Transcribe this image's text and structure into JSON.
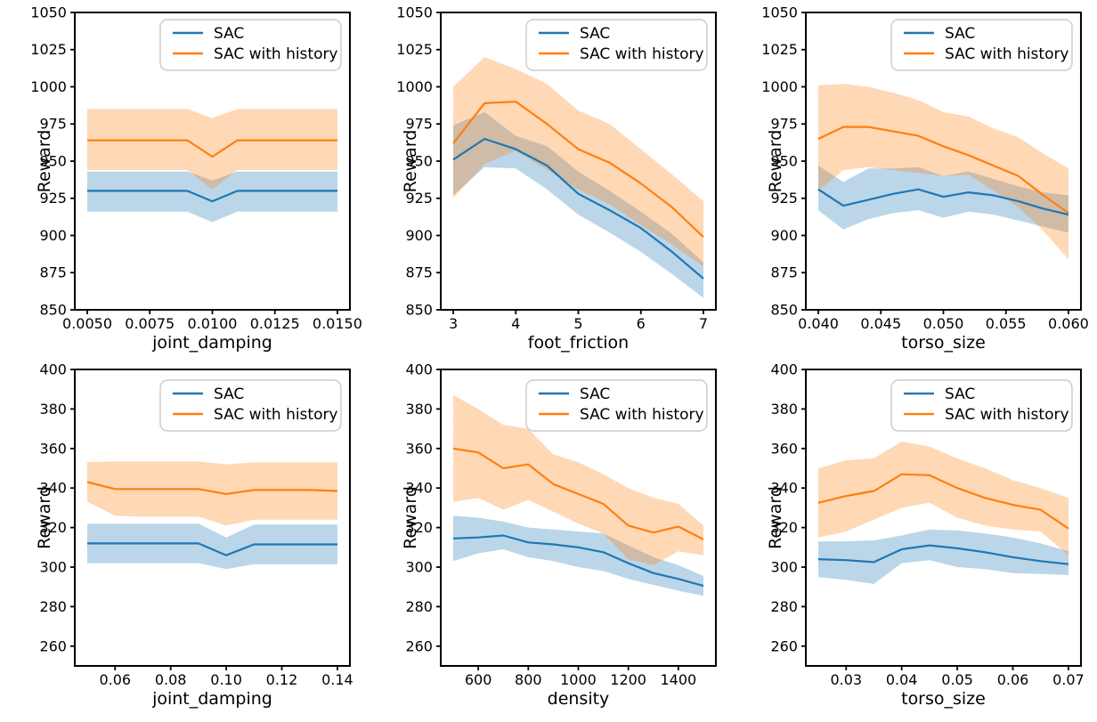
{
  "style": {
    "background": "#ffffff",
    "sac_color": "#1f77b4",
    "history_color": "#ff7f0e",
    "band_opacity": 0.3,
    "spine_color": "#000000",
    "legend_border_color": "#cccccc",
    "legend_fill": "#ffffff"
  },
  "legend": {
    "entries": [
      "SAC",
      "SAC with history"
    ],
    "position": "upper right"
  },
  "chart_data": [
    {
      "type": "line",
      "position": {
        "row": 0,
        "col": 0
      },
      "xlabel": "joint_damping",
      "ylabel": "Reward",
      "xlim": [
        0.0045,
        0.0155
      ],
      "ylim": [
        850,
        1050
      ],
      "grid": false,
      "xticks": {
        "values": [
          0.005,
          0.0075,
          0.01,
          0.0125,
          0.015
        ],
        "labels": [
          "0.0050",
          "0.0075",
          "0.0100",
          "0.0125",
          "0.0150"
        ]
      },
      "yticks": {
        "values": [
          850,
          875,
          900,
          925,
          950,
          975,
          1000,
          1025,
          1050
        ],
        "labels": [
          "850",
          "875",
          "900",
          "925",
          "950",
          "975",
          "1000",
          "1025",
          "1050"
        ]
      },
      "x": [
        0.005,
        0.006,
        0.007,
        0.008,
        0.009,
        0.01,
        0.011,
        0.012,
        0.013,
        0.014,
        0.015
      ],
      "series": [
        {
          "key": "sac",
          "name": "SAC",
          "color": "#1f77b4",
          "values": [
            930,
            930,
            930,
            930,
            930,
            923,
            930,
            930,
            930,
            930,
            930
          ],
          "band_lower": [
            916,
            916,
            916,
            916,
            916,
            909,
            916,
            916,
            916,
            916,
            916
          ],
          "band_upper": [
            943,
            943,
            943,
            943,
            943,
            937,
            943,
            943,
            943,
            943,
            943
          ]
        },
        {
          "key": "sac_with_history",
          "name": "SAC with history",
          "color": "#ff7f0e",
          "values": [
            964,
            964,
            964,
            964,
            964,
            953,
            964,
            964,
            964,
            964,
            964
          ],
          "band_lower": [
            944,
            944,
            944,
            944,
            944,
            931,
            944,
            944,
            944,
            944,
            944
          ],
          "band_upper": [
            985,
            985,
            985,
            985,
            985,
            979,
            985,
            985,
            985,
            985,
            985
          ]
        }
      ]
    },
    {
      "type": "line",
      "position": {
        "row": 0,
        "col": 1
      },
      "xlabel": "foot_friction",
      "ylabel": "Reward",
      "xlim": [
        2.8,
        7.2
      ],
      "ylim": [
        850,
        1050
      ],
      "grid": false,
      "xticks": {
        "values": [
          3,
          4,
          5,
          6,
          7
        ],
        "labels": [
          "3",
          "4",
          "5",
          "6",
          "7"
        ]
      },
      "yticks": {
        "values": [
          850,
          875,
          900,
          925,
          950,
          975,
          1000,
          1025,
          1050
        ],
        "labels": [
          "850",
          "875",
          "900",
          "925",
          "950",
          "975",
          "1000",
          "1025",
          "1050"
        ]
      },
      "x": [
        3,
        3.5,
        4,
        4.5,
        5,
        5.5,
        6,
        6.5,
        7
      ],
      "series": [
        {
          "key": "sac",
          "name": "SAC",
          "color": "#1f77b4",
          "values": [
            951,
            965,
            958,
            947,
            928,
            917,
            905,
            889,
            871
          ],
          "band_lower": [
            927,
            946,
            945,
            931,
            914,
            902,
            889,
            874,
            858
          ],
          "band_upper": [
            974,
            983,
            967,
            960,
            943,
            930,
            916,
            901,
            882
          ]
        },
        {
          "key": "sac_with_history",
          "name": "SAC with history",
          "color": "#ff7f0e",
          "values": [
            962,
            989,
            990,
            975,
            958,
            949,
            935,
            919,
            899
          ],
          "band_lower": [
            925,
            948,
            957,
            944,
            931,
            921,
            907,
            894,
            879
          ],
          "band_upper": [
            1000,
            1020,
            1012,
            1002,
            984,
            975,
            958,
            941,
            923
          ]
        }
      ]
    },
    {
      "type": "line",
      "position": {
        "row": 0,
        "col": 2
      },
      "xlabel": "torso_size",
      "ylabel": "Reward",
      "xlim": [
        0.039,
        0.061
      ],
      "ylim": [
        850,
        1050
      ],
      "grid": false,
      "xticks": {
        "values": [
          0.04,
          0.045,
          0.05,
          0.055,
          0.06
        ],
        "labels": [
          "0.040",
          "0.045",
          "0.050",
          "0.055",
          "0.060"
        ]
      },
      "yticks": {
        "values": [
          850,
          875,
          900,
          925,
          950,
          975,
          1000,
          1025,
          1050
        ],
        "labels": [
          "850",
          "875",
          "900",
          "925",
          "950",
          "975",
          "1000",
          "1025",
          "1050"
        ]
      },
      "x": [
        0.04,
        0.042,
        0.044,
        0.046,
        0.048,
        0.05,
        0.052,
        0.054,
        0.056,
        0.058,
        0.06
      ],
      "series": [
        {
          "key": "sac",
          "name": "SAC",
          "color": "#1f77b4",
          "values": [
            931,
            920,
            924,
            928,
            931,
            926,
            929,
            927,
            923,
            918,
            914
          ],
          "band_lower": [
            917,
            904,
            911,
            915,
            917,
            912,
            916,
            914,
            910,
            906,
            902
          ],
          "band_upper": [
            947,
            936,
            945,
            945,
            946,
            940,
            943,
            938,
            933,
            929,
            927
          ]
        },
        {
          "key": "sac_with_history",
          "name": "SAC with history",
          "color": "#ff7f0e",
          "values": [
            965,
            973,
            973,
            970,
            967,
            960,
            954,
            947,
            940,
            927,
            915
          ],
          "band_lower": [
            930,
            944,
            946,
            944,
            942,
            940,
            941,
            930,
            919,
            903,
            884
          ],
          "band_upper": [
            1001,
            1002,
            1000,
            996,
            991,
            983,
            980,
            972,
            966,
            955,
            945
          ]
        }
      ]
    },
    {
      "type": "line",
      "position": {
        "row": 1,
        "col": 0
      },
      "xlabel": "joint_damping",
      "ylabel": "Reward",
      "xlim": [
        0.0455,
        0.1445
      ],
      "ylim": [
        250,
        400
      ],
      "grid": false,
      "xticks": {
        "values": [
          0.06,
          0.08,
          0.1,
          0.12,
          0.14
        ],
        "labels": [
          "0.06",
          "0.08",
          "0.10",
          "0.12",
          "0.14"
        ]
      },
      "yticks": {
        "values": [
          260,
          280,
          300,
          320,
          340,
          360,
          380,
          400
        ],
        "labels": [
          "260",
          "280",
          "300",
          "320",
          "340",
          "360",
          "380",
          "400"
        ]
      },
      "x": [
        0.05,
        0.06,
        0.07,
        0.08,
        0.09,
        0.1,
        0.11,
        0.12,
        0.13,
        0.14
      ],
      "series": [
        {
          "key": "sac",
          "name": "SAC",
          "color": "#1f77b4",
          "values": [
            312,
            312,
            312,
            312,
            312,
            306,
            311.5,
            311.5,
            311.5,
            311.5
          ],
          "band_lower": [
            302,
            302,
            302,
            302,
            302,
            299,
            301.5,
            301.5,
            301.5,
            301.5
          ],
          "band_upper": [
            322,
            322,
            322,
            322,
            322,
            315,
            321.5,
            321.5,
            321.5,
            321.5
          ]
        },
        {
          "key": "sac_with_history",
          "name": "SAC with history",
          "color": "#ff7f0e",
          "values": [
            343,
            339.5,
            339.5,
            339.5,
            339.5,
            337,
            339,
            339,
            339,
            338.5
          ],
          "band_lower": [
            333,
            326,
            325.5,
            325.5,
            325.5,
            321,
            324,
            324,
            324,
            324
          ],
          "band_upper": [
            353,
            353.5,
            353.5,
            353.5,
            353.5,
            352,
            353,
            353,
            353,
            353
          ]
        }
      ]
    },
    {
      "type": "line",
      "position": {
        "row": 1,
        "col": 1
      },
      "xlabel": "density",
      "ylabel": "Reward",
      "xlim": [
        450,
        1550
      ],
      "ylim": [
        250,
        400
      ],
      "grid": false,
      "xticks": {
        "values": [
          600,
          800,
          1000,
          1200,
          1400
        ],
        "labels": [
          "600",
          "800",
          "1000",
          "1200",
          "1400"
        ]
      },
      "yticks": {
        "values": [
          260,
          280,
          300,
          320,
          340,
          360,
          380,
          400
        ],
        "labels": [
          "260",
          "280",
          "300",
          "320",
          "340",
          "360",
          "380",
          "400"
        ]
      },
      "x": [
        500,
        600,
        700,
        800,
        900,
        1000,
        1100,
        1200,
        1300,
        1400,
        1500
      ],
      "series": [
        {
          "key": "sac",
          "name": "SAC",
          "color": "#1f77b4",
          "values": [
            314.5,
            315,
            316,
            312.5,
            311.5,
            310,
            307.5,
            302,
            297,
            294,
            290.5
          ],
          "band_lower": [
            303,
            307,
            309,
            305,
            303,
            300,
            298,
            294,
            291,
            288,
            285.5
          ],
          "band_upper": [
            326,
            325,
            323,
            320,
            319,
            318,
            317,
            311,
            305,
            301,
            295.5
          ]
        },
        {
          "key": "sac_with_history",
          "name": "SAC with history",
          "color": "#ff7f0e",
          "values": [
            360,
            358,
            350,
            352,
            342,
            337,
            332,
            321,
            317.5,
            320.5,
            314
          ],
          "band_lower": [
            333,
            335,
            329,
            334,
            328,
            322,
            317,
            304,
            301,
            308,
            306
          ],
          "band_upper": [
            387,
            380,
            372,
            370,
            357,
            353,
            347,
            340,
            335,
            332,
            321
          ]
        }
      ]
    },
    {
      "type": "line",
      "position": {
        "row": 1,
        "col": 2
      },
      "xlabel": "torso_size",
      "ylabel": "Reward",
      "xlim": [
        0.02275,
        0.07225
      ],
      "ylim": [
        250,
        400
      ],
      "grid": false,
      "xticks": {
        "values": [
          0.03,
          0.04,
          0.05,
          0.06,
          0.07
        ],
        "labels": [
          "0.03",
          "0.04",
          "0.05",
          "0.06",
          "0.07"
        ]
      },
      "yticks": {
        "values": [
          260,
          280,
          300,
          320,
          340,
          360,
          380,
          400
        ],
        "labels": [
          "260",
          "280",
          "300",
          "320",
          "340",
          "360",
          "380",
          "400"
        ]
      },
      "x": [
        0.025,
        0.03,
        0.035,
        0.04,
        0.045,
        0.05,
        0.055,
        0.06,
        0.065,
        0.07
      ],
      "series": [
        {
          "key": "sac",
          "name": "SAC",
          "color": "#1f77b4",
          "values": [
            304,
            303.5,
            302.5,
            309,
            311,
            309.5,
            307.5,
            305,
            303,
            301.5
          ],
          "band_lower": [
            295,
            293.5,
            291.5,
            302,
            303.5,
            300,
            299,
            297,
            296.5,
            296
          ],
          "band_upper": [
            313,
            313,
            313.5,
            316,
            319,
            318.5,
            317,
            315,
            312,
            308
          ]
        },
        {
          "key": "sac_with_history",
          "name": "SAC with history",
          "color": "#ff7f0e",
          "values": [
            332.5,
            336,
            338.5,
            347,
            346.5,
            340,
            335,
            331.5,
            329,
            319.5
          ],
          "band_lower": [
            315,
            318,
            324,
            330,
            332.5,
            325,
            321,
            319,
            318,
            306
          ],
          "band_upper": [
            350,
            354,
            355,
            363.5,
            361,
            355,
            350,
            344,
            340,
            335
          ]
        }
      ]
    }
  ]
}
